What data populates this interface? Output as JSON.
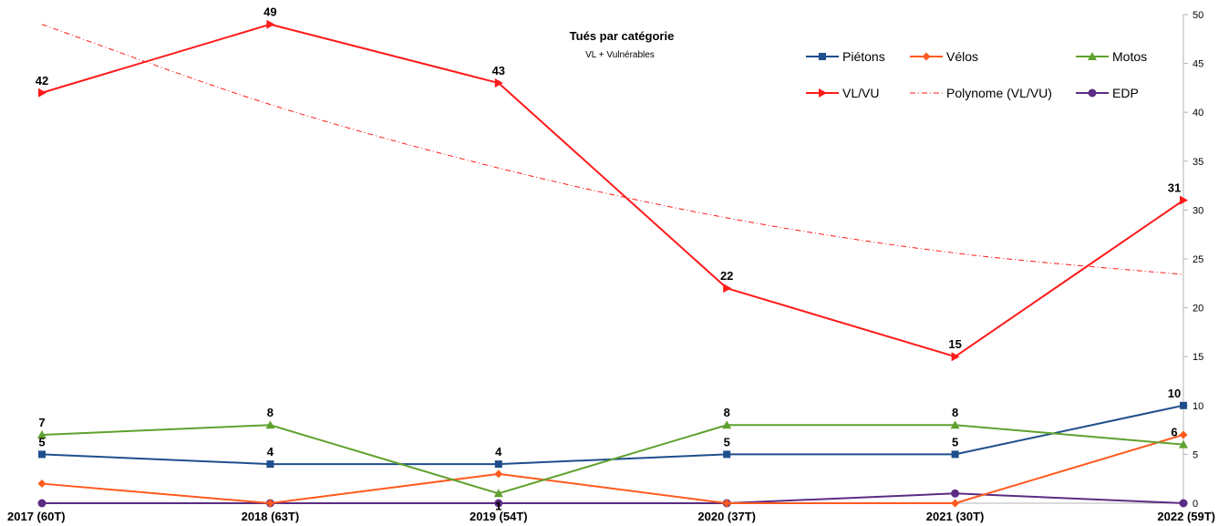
{
  "chart_data": {
    "type": "line",
    "title": "Tués par catégorie",
    "subtitle": "VL + Vulnérables",
    "categories": [
      "2017 (60T)",
      "2018 (63T)",
      "2019 (54T)",
      "2020 (37T)",
      "2021 (30T)",
      "2022 (59T)"
    ],
    "ylim": [
      0,
      50
    ],
    "yticks": [
      0,
      5,
      10,
      15,
      20,
      25,
      30,
      35,
      40,
      45,
      50
    ],
    "y_axis_side": "right",
    "grid": false,
    "legend_position": "top-right",
    "series": [
      {
        "name": "Piétons",
        "values": [
          5,
          4,
          4,
          5,
          5,
          10
        ],
        "color": "#1f4e8c",
        "marker": "square",
        "data_labels": [
          5,
          4,
          4,
          5,
          5,
          10
        ]
      },
      {
        "name": "Vélos",
        "values": [
          2,
          0,
          3,
          0,
          0,
          7
        ],
        "color": "#ff5a1f",
        "marker": "diamond",
        "data_labels": []
      },
      {
        "name": "Motos",
        "values": [
          7,
          8,
          1,
          8,
          8,
          6
        ],
        "color": "#5fa12e",
        "marker": "triangle",
        "data_labels": [
          7,
          8,
          1,
          8,
          8,
          6
        ]
      },
      {
        "name": "VL/VU",
        "values": [
          42,
          49,
          43,
          22,
          15,
          31
        ],
        "color": "#ff1a1a",
        "marker": "arrow",
        "data_labels": [
          42,
          49,
          43,
          22,
          15,
          31
        ]
      },
      {
        "name": "Polynome (VL/VU)",
        "values": [
          49,
          40.8,
          34.3,
          29.2,
          25.6,
          23.4
        ],
        "color": "#ff1a1a",
        "marker": "none",
        "line_style": "dash-dot",
        "data_labels": []
      },
      {
        "name": "EDP",
        "values": [
          0,
          0,
          0,
          0,
          1,
          0
        ],
        "color": "#5b2c83",
        "marker": "circle",
        "data_labels": []
      }
    ]
  }
}
